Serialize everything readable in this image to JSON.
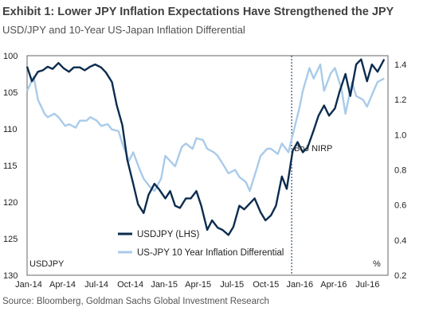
{
  "header": {
    "title": "Exhibit 1: Lower JPY Inflation Expectations Have Strengthened the JPY",
    "subtitle": "USD/JPY and 10-Year US-Japan Inflation Differential"
  },
  "footer": {
    "source": "Source: Bloomberg, Goldman Sachs Global Investment Research"
  },
  "chart_data": {
    "type": "line",
    "x_axis": {
      "categories": [
        "Jan-14",
        "Apr-14",
        "Jul-14",
        "Oct-14",
        "Jan-15",
        "Apr-15",
        "Jul-15",
        "Oct-15",
        "Jan-16",
        "Apr-16",
        "Jul-16"
      ],
      "range": [
        "2014-01-01",
        "2016-10-31"
      ]
    },
    "y_left": {
      "label": "USDJPY",
      "ticks": [
        100,
        105,
        110,
        115,
        120,
        125,
        130
      ],
      "range": [
        100,
        130
      ],
      "inverted": true
    },
    "y_right": {
      "label": "%",
      "ticks": [
        0.2,
        0.4,
        0.6,
        0.8,
        1.0,
        1.2,
        1.4
      ],
      "range": [
        0.2,
        1.45
      ]
    },
    "grid": false,
    "legend": {
      "position": "bottom-center"
    },
    "annotation": {
      "label": "BoJ NIRP",
      "x": "2016-01-29"
    },
    "series": [
      {
        "name": "USDJPY (LHS)",
        "axis": "left",
        "color": "#0b2c4f",
        "x": [
          "2014-01-01",
          "2014-01-15",
          "2014-02-01",
          "2014-02-15",
          "2014-03-01",
          "2014-03-15",
          "2014-04-01",
          "2014-04-15",
          "2014-05-01",
          "2014-05-15",
          "2014-06-01",
          "2014-06-15",
          "2014-07-01",
          "2014-07-15",
          "2014-08-01",
          "2014-08-15",
          "2014-09-01",
          "2014-09-15",
          "2014-10-01",
          "2014-10-15",
          "2014-11-01",
          "2014-11-15",
          "2014-12-01",
          "2014-12-15",
          "2015-01-01",
          "2015-01-15",
          "2015-02-01",
          "2015-02-15",
          "2015-03-01",
          "2015-03-15",
          "2015-04-01",
          "2015-04-15",
          "2015-05-01",
          "2015-05-15",
          "2015-06-01",
          "2015-06-15",
          "2015-07-01",
          "2015-07-15",
          "2015-08-01",
          "2015-08-15",
          "2015-09-01",
          "2015-09-15",
          "2015-10-01",
          "2015-10-15",
          "2015-11-01",
          "2015-11-15",
          "2015-12-01",
          "2015-12-15",
          "2016-01-01",
          "2016-01-15",
          "2016-02-01",
          "2016-02-15",
          "2016-03-01",
          "2016-03-15",
          "2016-04-01",
          "2016-04-15",
          "2016-05-01",
          "2016-05-15",
          "2016-06-01",
          "2016-06-15",
          "2016-07-01",
          "2016-07-15",
          "2016-08-01",
          "2016-08-15",
          "2016-09-01",
          "2016-09-15",
          "2016-10-01",
          "2016-10-20"
        ],
        "values": [
          101.5,
          103.5,
          102.2,
          102.0,
          101.5,
          101.8,
          101.0,
          101.7,
          102.2,
          101.6,
          101.6,
          102.0,
          101.5,
          101.2,
          101.6,
          102.3,
          103.6,
          106.8,
          109.5,
          114.2,
          117.5,
          120.3,
          121.5,
          119.0,
          117.5,
          118.3,
          119.5,
          118.5,
          120.5,
          120.8,
          119.5,
          119.5,
          118.5,
          120.5,
          123.8,
          122.5,
          123.5,
          123.8,
          124.5,
          123.4,
          120.5,
          121.0,
          120.2,
          119.5,
          121.4,
          122.5,
          121.8,
          120.5,
          116.5,
          118.2,
          113.0,
          111.8,
          113.2,
          112.5,
          110.2,
          108.2,
          106.8,
          108.2,
          107.2,
          104.8,
          102.5,
          105.5,
          101.2,
          100.5,
          103.5,
          101.2,
          102.2,
          100.5
        ]
      },
      {
        "name": "US-JPY 10 Year Inflation Differential",
        "axis": "right",
        "color": "#a9cbea",
        "x": [
          "2014-01-01",
          "2014-01-20",
          "2014-02-01",
          "2014-02-20",
          "2014-03-01",
          "2014-03-20",
          "2014-04-01",
          "2014-04-20",
          "2014-05-01",
          "2014-05-20",
          "2014-06-01",
          "2014-06-20",
          "2014-07-01",
          "2014-07-20",
          "2014-08-01",
          "2014-08-20",
          "2014-09-01",
          "2014-09-20",
          "2014-10-01",
          "2014-10-20",
          "2014-11-01",
          "2014-11-20",
          "2014-12-01",
          "2014-12-20",
          "2015-01-01",
          "2015-01-20",
          "2015-02-01",
          "2015-02-20",
          "2015-03-01",
          "2015-03-20",
          "2015-04-01",
          "2015-04-20",
          "2015-05-01",
          "2015-05-20",
          "2015-06-01",
          "2015-06-20",
          "2015-07-01",
          "2015-07-20",
          "2015-08-01",
          "2015-08-20",
          "2015-09-01",
          "2015-09-20",
          "2015-10-01",
          "2015-10-20",
          "2015-11-01",
          "2015-11-20",
          "2015-12-01",
          "2015-12-20",
          "2016-01-01",
          "2016-01-20",
          "2016-02-01",
          "2016-02-20",
          "2016-03-01",
          "2016-03-20",
          "2016-04-01",
          "2016-04-20",
          "2016-05-01",
          "2016-05-20",
          "2016-06-01",
          "2016-06-20",
          "2016-07-01",
          "2016-07-20",
          "2016-08-01",
          "2016-08-20",
          "2016-09-01",
          "2016-09-20",
          "2016-10-01",
          "2016-10-20"
        ],
        "values": [
          1.25,
          1.33,
          1.2,
          1.12,
          1.1,
          1.12,
          1.1,
          1.05,
          1.06,
          1.04,
          1.08,
          1.08,
          1.1,
          1.08,
          1.05,
          1.06,
          1.03,
          1.02,
          0.95,
          0.85,
          0.9,
          0.8,
          0.75,
          0.7,
          0.68,
          0.75,
          0.88,
          0.84,
          0.82,
          0.93,
          0.95,
          0.92,
          0.98,
          0.97,
          0.92,
          0.9,
          0.88,
          0.82,
          0.78,
          0.8,
          0.76,
          0.73,
          0.68,
          0.8,
          0.88,
          0.92,
          0.92,
          0.89,
          0.95,
          0.9,
          1.0,
          1.15,
          1.25,
          1.38,
          1.32,
          1.4,
          1.25,
          1.35,
          1.38,
          1.26,
          1.12,
          1.3,
          1.22,
          1.2,
          1.16,
          1.25,
          1.3,
          1.32
        ]
      }
    ]
  }
}
